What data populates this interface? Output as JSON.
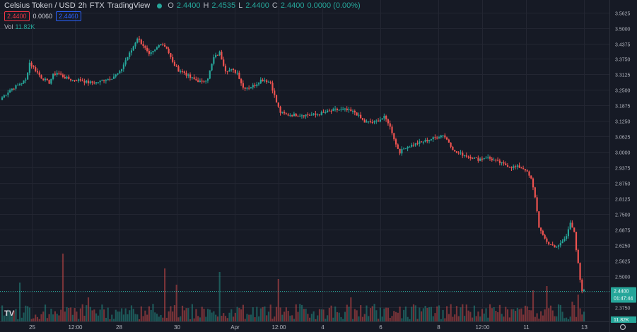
{
  "header": {
    "title": "Celsius Token / USD",
    "interval": "2h",
    "exchange": "FTX",
    "source": "TradingView",
    "ohlc": [
      {
        "k": "O",
        "v": "2.4400"
      },
      {
        "k": "H",
        "v": "2.4535"
      },
      {
        "k": "L",
        "v": "2.4400"
      },
      {
        "k": "C",
        "v": "2.4400"
      }
    ],
    "change": "0.0000 (0.00%)"
  },
  "trade": {
    "sell": "2.4400",
    "spread": "0.0060",
    "buy": "2.4460"
  },
  "volume": {
    "label": "Vol",
    "value": "11.82K"
  },
  "price_badge": {
    "price": "2.4400",
    "countdown": "01:47:44"
  },
  "volume_badge": "11.82K",
  "colors": {
    "up": "#26a69a",
    "down": "#ef5350",
    "background": "#161a25",
    "grid": "#232632"
  },
  "chart_data": {
    "type": "candlestick",
    "title": "Celsius Token / USD",
    "y_ticks": [
      "3.5625",
      "3.5000",
      "3.4375",
      "3.3750",
      "3.3125",
      "3.2500",
      "3.1875",
      "3.1250",
      "3.0625",
      "3.0000",
      "2.9375",
      "2.8750",
      "2.8125",
      "2.7500",
      "2.6875",
      "2.6250",
      "2.5625",
      "2.5000",
      "2.4375",
      "2.3750"
    ],
    "ylim": [
      2.36,
      3.57
    ],
    "x_ticks": [
      "25",
      "12:00",
      "28",
      "30",
      "Apr",
      "12:00",
      "4",
      "6",
      "8",
      "12:00",
      "11",
      "13"
    ],
    "anchors": [
      [
        0,
        3.22
      ],
      [
        4,
        3.25
      ],
      [
        8,
        3.27
      ],
      [
        12,
        3.29
      ],
      [
        14,
        3.36
      ],
      [
        16,
        3.34
      ],
      [
        20,
        3.3
      ],
      [
        24,
        3.28
      ],
      [
        26,
        3.31
      ],
      [
        28,
        3.32
      ],
      [
        32,
        3.3
      ],
      [
        36,
        3.29
      ],
      [
        40,
        3.29
      ],
      [
        44,
        3.28
      ],
      [
        48,
        3.28
      ],
      [
        52,
        3.29
      ],
      [
        56,
        3.3
      ],
      [
        60,
        3.32
      ],
      [
        63,
        3.37
      ],
      [
        66,
        3.41
      ],
      [
        69,
        3.46
      ],
      [
        72,
        3.43
      ],
      [
        75,
        3.39
      ],
      [
        78,
        3.41
      ],
      [
        81,
        3.44
      ],
      [
        84,
        3.42
      ],
      [
        87,
        3.36
      ],
      [
        90,
        3.33
      ],
      [
        93,
        3.32
      ],
      [
        96,
        3.3
      ],
      [
        99,
        3.29
      ],
      [
        102,
        3.28
      ],
      [
        105,
        3.3
      ],
      [
        108,
        3.38
      ],
      [
        111,
        3.4
      ],
      [
        114,
        3.33
      ],
      [
        117,
        3.33
      ],
      [
        120,
        3.32
      ],
      [
        123,
        3.26
      ],
      [
        126,
        3.26
      ],
      [
        129,
        3.27
      ],
      [
        132,
        3.29
      ],
      [
        134,
        3.29
      ],
      [
        137,
        3.28
      ],
      [
        140,
        3.2
      ],
      [
        142,
        3.16
      ],
      [
        145,
        3.15
      ],
      [
        150,
        3.15
      ],
      [
        155,
        3.15
      ],
      [
        160,
        3.15
      ],
      [
        165,
        3.16
      ],
      [
        170,
        3.17
      ],
      [
        175,
        3.17
      ],
      [
        180,
        3.16
      ],
      [
        185,
        3.12
      ],
      [
        190,
        3.12
      ],
      [
        195,
        3.14
      ],
      [
        197,
        3.12
      ],
      [
        199,
        3.08
      ],
      [
        201,
        3.03
      ],
      [
        203,
        3.0
      ],
      [
        206,
        3.02
      ],
      [
        210,
        3.03
      ],
      [
        214,
        3.04
      ],
      [
        218,
        3.05
      ],
      [
        222,
        3.06
      ],
      [
        225,
        3.07
      ],
      [
        228,
        3.04
      ],
      [
        231,
        3.0
      ],
      [
        235,
        2.99
      ],
      [
        239,
        2.98
      ],
      [
        243,
        2.97
      ],
      [
        247,
        2.98
      ],
      [
        250,
        2.97
      ],
      [
        253,
        2.96
      ],
      [
        256,
        2.95
      ],
      [
        260,
        2.94
      ],
      [
        264,
        2.94
      ],
      [
        267,
        2.93
      ],
      [
        270,
        2.89
      ],
      [
        272,
        2.82
      ],
      [
        274,
        2.7
      ],
      [
        276,
        2.66
      ],
      [
        279,
        2.63
      ],
      [
        282,
        2.62
      ],
      [
        284,
        2.62
      ],
      [
        286,
        2.64
      ],
      [
        288,
        2.66
      ],
      [
        290,
        2.72
      ],
      [
        292,
        2.68
      ],
      [
        293,
        2.6
      ],
      [
        294,
        2.55
      ],
      [
        295,
        2.48
      ],
      [
        296,
        2.44
      ],
      [
        297,
        2.44
      ]
    ],
    "volume_spikes": [
      [
        9,
        55
      ],
      [
        25,
        18
      ],
      [
        31,
        96
      ],
      [
        44,
        34
      ],
      [
        59,
        14
      ],
      [
        83,
        75
      ],
      [
        89,
        52
      ],
      [
        111,
        70
      ],
      [
        141,
        60
      ],
      [
        178,
        34
      ],
      [
        216,
        22
      ],
      [
        271,
        44
      ],
      [
        278,
        50
      ],
      [
        291,
        28
      ],
      [
        294,
        38
      ]
    ]
  }
}
